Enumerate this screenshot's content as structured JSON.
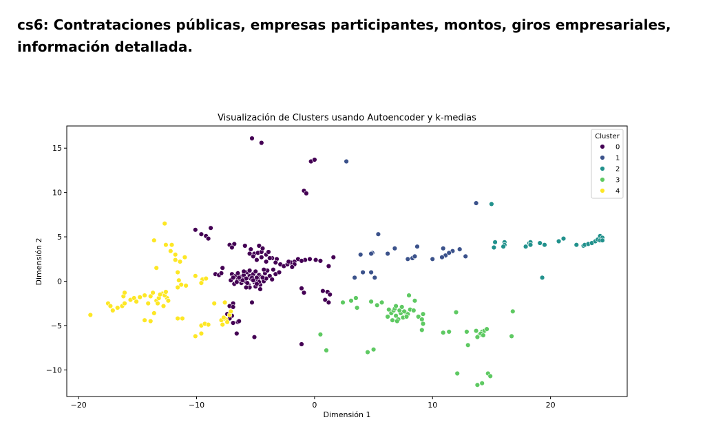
{
  "page": {
    "heading": "cs6: Contrataciones públicas, empresas participantes, montos, giros empresariales, información detallada."
  },
  "chart_data": {
    "type": "scatter",
    "title": "Visualización de Clusters usando Autoencoder y k-medias",
    "xlabel": "Dimensión 1",
    "ylabel": "Dimensión 2",
    "xlim": [
      -21,
      26.5
    ],
    "ylim": [
      -13,
      17.5
    ],
    "xticks": [
      -20,
      -10,
      0,
      10,
      20
    ],
    "yticks": [
      -10,
      -5,
      0,
      5,
      10,
      15
    ],
    "xtick_labels": [
      "−20",
      "−10",
      "0",
      "10",
      "20"
    ],
    "ytick_labels": [
      "−10",
      "−5",
      "0",
      "5",
      "10",
      "15"
    ],
    "grid": false,
    "legend": {
      "title": "Cluster",
      "placement": "top-right"
    },
    "series": [
      {
        "name": "0",
        "color": "#440154",
        "points": [
          [
            -5.3,
            16.1
          ],
          [
            -4.5,
            15.6
          ],
          [
            -0.3,
            13.5
          ],
          [
            0,
            13.7
          ],
          [
            -0.9,
            10.2
          ],
          [
            -0.7,
            9.9
          ],
          [
            -10.1,
            5.8
          ],
          [
            -9.6,
            5.3
          ],
          [
            -9.2,
            5.1
          ],
          [
            -8.8,
            6
          ],
          [
            -9,
            4.8
          ],
          [
            -7.2,
            4.1
          ],
          [
            -6.8,
            4.2
          ],
          [
            -7,
            3.8
          ],
          [
            -5.9,
            4
          ],
          [
            -5.4,
            3.6
          ],
          [
            -5.1,
            3.1
          ],
          [
            -4.8,
            3.2
          ],
          [
            -4.5,
            3.3
          ],
          [
            -4.7,
            4
          ],
          [
            -4.4,
            3.7
          ],
          [
            -4.1,
            3
          ],
          [
            -3.9,
            3.3
          ],
          [
            -3.6,
            2.6
          ],
          [
            -3.2,
            2.5
          ],
          [
            -5.5,
            3.1
          ],
          [
            -5.2,
            2.8
          ],
          [
            -4.9,
            2.4
          ],
          [
            -4.5,
            2.7
          ],
          [
            -4.1,
            2.2
          ],
          [
            -3.8,
            2.6
          ],
          [
            -3.3,
            2.1
          ],
          [
            -2.9,
            1.9
          ],
          [
            -2.6,
            1.7
          ],
          [
            -2.3,
            1.9
          ],
          [
            -2,
            2.1
          ],
          [
            -1.7,
            2.2
          ],
          [
            -1.4,
            2.5
          ],
          [
            -1.7,
            1.9
          ],
          [
            -1.9,
            1.6
          ],
          [
            -2.2,
            2.2
          ],
          [
            -0.8,
            2.4
          ],
          [
            -0.4,
            2.5
          ],
          [
            0.1,
            2.4
          ],
          [
            0.5,
            2.3
          ],
          [
            1.6,
            2.7
          ],
          [
            1.2,
            1.7
          ],
          [
            -1.1,
            2.3
          ],
          [
            -7.8,
            1.5
          ],
          [
            -8.4,
            0.8
          ],
          [
            -8.1,
            0.7
          ],
          [
            -7.9,
            0.9
          ],
          [
            -7,
            0.8
          ],
          [
            -6.7,
            0.6
          ],
          [
            -6.5,
            0.9
          ],
          [
            -6.2,
            0.5
          ],
          [
            -6,
            0.7
          ],
          [
            -5.7,
            1
          ],
          [
            -5.5,
            0.6
          ],
          [
            -5.2,
            0.8
          ],
          [
            -5,
            1.1
          ],
          [
            -4.7,
            0.7
          ],
          [
            -4.5,
            0.5
          ],
          [
            -4.2,
            0.9
          ],
          [
            -4,
            1.2
          ],
          [
            -3.8,
            0.6
          ],
          [
            -7.1,
            0.1
          ],
          [
            -6.8,
            -0.3
          ],
          [
            -6.5,
            0.2
          ],
          [
            -6.2,
            -0.2
          ],
          [
            -5.9,
            0
          ],
          [
            -5.6,
            -0.4
          ],
          [
            -5.4,
            0.3
          ],
          [
            -5.1,
            -0.1
          ],
          [
            -4.8,
            0.2
          ],
          [
            -4.6,
            -0.4
          ],
          [
            -4.3,
            0
          ],
          [
            -4.1,
            0.3
          ],
          [
            -6.9,
            0.4
          ],
          [
            -6.4,
            0.4
          ],
          [
            -5.8,
            0.3
          ],
          [
            -5.3,
            0.4
          ],
          [
            -4.9,
            0.4
          ],
          [
            -4.4,
            0.4
          ],
          [
            -6.6,
            -0.1
          ],
          [
            -6.1,
            0.1
          ],
          [
            -5.7,
            -0.2
          ],
          [
            -5.2,
            0.1
          ],
          [
            -4.7,
            -0.1
          ],
          [
            -3.5,
            1.3
          ],
          [
            -3.3,
            0.8
          ],
          [
            -3,
            1
          ],
          [
            -3.6,
            0.2
          ],
          [
            -5.5,
            1.2
          ],
          [
            -6,
            1.1
          ],
          [
            -4.3,
            1.3
          ],
          [
            -5.5,
            -0.7
          ],
          [
            -5,
            -0.6
          ],
          [
            -4.6,
            -0.9
          ],
          [
            -4.9,
            -0.3
          ],
          [
            -5.8,
            -0.7
          ],
          [
            -1.1,
            -0.8
          ],
          [
            -0.9,
            -1.3
          ],
          [
            0.7,
            -1.1
          ],
          [
            1.1,
            -1.2
          ],
          [
            1.3,
            -1.5
          ],
          [
            0.9,
            -2.1
          ],
          [
            1.2,
            -2.4
          ],
          [
            -6.9,
            -2.5
          ],
          [
            -7.2,
            -2.8
          ],
          [
            -6.9,
            -2.9
          ],
          [
            -5.3,
            -2.4
          ],
          [
            -7.4,
            -3.7
          ],
          [
            -7,
            -3.9
          ],
          [
            -7.2,
            -4.2
          ],
          [
            -6.5,
            -4.6
          ],
          [
            -6.9,
            -4.7
          ],
          [
            -6.4,
            -4.5
          ],
          [
            -6.6,
            -5.9
          ],
          [
            -5.1,
            -6.3
          ],
          [
            -1.1,
            -7.1
          ]
        ]
      },
      {
        "name": "1",
        "color": "#3b528b",
        "points": [
          [
            2.7,
            13.5
          ],
          [
            5.4,
            5.3
          ],
          [
            13.7,
            8.8
          ],
          [
            6.8,
            3.7
          ],
          [
            8.7,
            3.9
          ],
          [
            10.9,
            3.7
          ],
          [
            11.7,
            3.4
          ],
          [
            12.3,
            3.6
          ],
          [
            11.1,
            2.9
          ],
          [
            11.4,
            3.2
          ],
          [
            10.8,
            2.7
          ],
          [
            10,
            2.5
          ],
          [
            8.3,
            2.6
          ],
          [
            8.5,
            2.8
          ],
          [
            7.9,
            2.5
          ],
          [
            12.8,
            2.8
          ],
          [
            6.2,
            3.1
          ],
          [
            4.9,
            3.2
          ],
          [
            4.8,
            3.1
          ],
          [
            3.9,
            3
          ],
          [
            4.1,
            1
          ],
          [
            4.8,
            1
          ],
          [
            3.4,
            0.4
          ],
          [
            5.1,
            0.4
          ]
        ]
      },
      {
        "name": "2",
        "color": "#21918c",
        "points": [
          [
            15,
            8.7
          ],
          [
            15.3,
            4.4
          ],
          [
            16.1,
            4.4
          ],
          [
            16.1,
            4.1
          ],
          [
            16,
            3.9
          ],
          [
            15.2,
            3.8
          ],
          [
            18.2,
            4.3
          ],
          [
            18.3,
            4.4
          ],
          [
            17.9,
            3.9
          ],
          [
            18.3,
            4.1
          ],
          [
            19.1,
            4.3
          ],
          [
            19.5,
            4.1
          ],
          [
            20.7,
            4.5
          ],
          [
            21.1,
            4.8
          ],
          [
            22.2,
            4.1
          ],
          [
            22.8,
            4
          ],
          [
            22.9,
            4.1
          ],
          [
            23.2,
            4.2
          ],
          [
            23.5,
            4.3
          ],
          [
            23.8,
            4.5
          ],
          [
            24,
            4.7
          ],
          [
            24.2,
            5.1
          ],
          [
            24.4,
            4.9
          ],
          [
            24.2,
            4.6
          ],
          [
            24.4,
            4.6
          ],
          [
            19.3,
            0.4
          ]
        ]
      },
      {
        "name": "3",
        "color": "#5ec962",
        "points": [
          [
            2.4,
            -2.4
          ],
          [
            3.1,
            -2.2
          ],
          [
            3.5,
            -1.9
          ],
          [
            3.6,
            -3
          ],
          [
            4.8,
            -2.3
          ],
          [
            5.3,
            -2.7
          ],
          [
            5.7,
            -2.4
          ],
          [
            6.2,
            -4
          ],
          [
            6.5,
            -3.6
          ],
          [
            6.7,
            -3.3
          ],
          [
            6.9,
            -3.9
          ],
          [
            7.1,
            -4.3
          ],
          [
            7.3,
            -3.6
          ],
          [
            7.5,
            -4.1
          ],
          [
            7.7,
            -3.5
          ],
          [
            7.9,
            -3.7
          ],
          [
            8.1,
            -3.2
          ],
          [
            6.8,
            -3.1
          ],
          [
            6.9,
            -2.8
          ],
          [
            7.2,
            -3.3
          ],
          [
            7.4,
            -2.9
          ],
          [
            7.6,
            -3.4
          ],
          [
            6.6,
            -4.4
          ],
          [
            7,
            -4.5
          ],
          [
            6.3,
            -3.2
          ],
          [
            7.8,
            -4
          ],
          [
            8.4,
            -3.3
          ],
          [
            8,
            -1.6
          ],
          [
            8.5,
            -2.2
          ],
          [
            8.8,
            -4
          ],
          [
            9.1,
            -4.3
          ],
          [
            9.2,
            -3.7
          ],
          [
            9.2,
            -4.8
          ],
          [
            9.1,
            -5.5
          ],
          [
            10.9,
            -5.8
          ],
          [
            11.4,
            -5.7
          ],
          [
            12,
            -3.5
          ],
          [
            12.9,
            -5.7
          ],
          [
            13.7,
            -5.6
          ],
          [
            14,
            -6
          ],
          [
            13.8,
            -6.3
          ],
          [
            14.2,
            -5.7
          ],
          [
            14.4,
            -5.6
          ],
          [
            14.6,
            -5.4
          ],
          [
            14.1,
            -5.9
          ],
          [
            14.3,
            -6.1
          ],
          [
            13,
            -7.2
          ],
          [
            16.8,
            -3.4
          ],
          [
            16.7,
            -6.2
          ],
          [
            12.1,
            -10.4
          ],
          [
            13.8,
            -11.7
          ],
          [
            14.2,
            -11.5
          ],
          [
            14.7,
            -10.4
          ],
          [
            14.9,
            -10.7
          ],
          [
            0.5,
            -6
          ],
          [
            1,
            -7.8
          ],
          [
            4.5,
            -8
          ],
          [
            5,
            -7.7
          ]
        ]
      },
      {
        "name": "4",
        "color": "#fde725",
        "points": [
          [
            -19,
            -3.8
          ],
          [
            -17.5,
            -2.5
          ],
          [
            -17.3,
            -2.8
          ],
          [
            -17.1,
            -3.3
          ],
          [
            -16.7,
            -3
          ],
          [
            -16.3,
            -2.8
          ],
          [
            -16.1,
            -2.5
          ],
          [
            -16.2,
            -1.7
          ],
          [
            -16.1,
            -1.3
          ],
          [
            -15.6,
            -2.1
          ],
          [
            -15.3,
            -1.9
          ],
          [
            -15.1,
            -2.3
          ],
          [
            -14.8,
            -1.8
          ],
          [
            -14.4,
            -1.6
          ],
          [
            -14.1,
            -2.5
          ],
          [
            -13.9,
            -1.7
          ],
          [
            -13.7,
            -1.3
          ],
          [
            -13.4,
            -2.2
          ],
          [
            -13.2,
            -1.9
          ],
          [
            -12.9,
            -1.4
          ],
          [
            -13.3,
            -2.5
          ],
          [
            -12.8,
            -2.8
          ],
          [
            -12.5,
            -1.9
          ],
          [
            -12.7,
            -1.6
          ],
          [
            -13.6,
            -3.6
          ],
          [
            -13.9,
            -4.5
          ],
          [
            -14.4,
            -4.4
          ],
          [
            -12.4,
            -2.2
          ],
          [
            -13.1,
            -1.5
          ],
          [
            -12.6,
            -1.2
          ],
          [
            -12.7,
            6.5
          ],
          [
            -13.6,
            4.6
          ],
          [
            -12.6,
            4.1
          ],
          [
            -12.1,
            4.1
          ],
          [
            -12.2,
            3.4
          ],
          [
            -11.8,
            3
          ],
          [
            -11.8,
            2.4
          ],
          [
            -11.4,
            2.2
          ],
          [
            -11,
            2.7
          ],
          [
            -13.4,
            1.5
          ],
          [
            -11.6,
            1
          ],
          [
            -11.5,
            0.1
          ],
          [
            -11.3,
            -0.4
          ],
          [
            -11.6,
            -0.7
          ],
          [
            -10.9,
            -0.5
          ],
          [
            -10.1,
            0.6
          ],
          [
            -9.5,
            0.2
          ],
          [
            -9.2,
            0.3
          ],
          [
            -9.6,
            -0.2
          ],
          [
            -11.6,
            -4.2
          ],
          [
            -11.2,
            -4.2
          ],
          [
            -9.6,
            -5
          ],
          [
            -9.3,
            -4.8
          ],
          [
            -9,
            -4.9
          ],
          [
            -10.1,
            -6.2
          ],
          [
            -9.6,
            -5.9
          ],
          [
            -7.9,
            -4.4
          ],
          [
            -7.8,
            -4.9
          ],
          [
            -7.5,
            -4.3
          ],
          [
            -7.2,
            -3.8
          ],
          [
            -7.1,
            -3.4
          ],
          [
            -8.5,
            -2.5
          ],
          [
            -7.6,
            -2.4
          ],
          [
            -7.4,
            -4.6
          ],
          [
            -7.7,
            -4.1
          ]
        ]
      }
    ]
  }
}
